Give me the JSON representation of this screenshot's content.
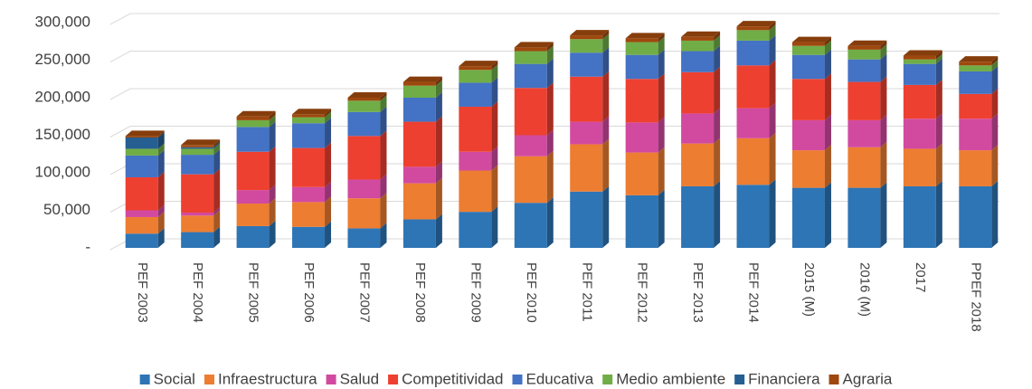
{
  "chart_data": {
    "type": "bar",
    "stacked": true,
    "grid": true,
    "legend": "bottom",
    "categories": [
      "PEF 2003",
      "PEF 2004",
      "PEF 2005",
      "PEF 2006",
      "PEF 2007",
      "PEF 2008",
      "PEF 2009",
      "PEF 2010",
      "PEF 2011",
      "PEF 2012",
      "PEF 2013",
      "PEF 2014",
      "2015 (M)",
      "2016 (M)",
      "2017",
      "PPEF 2018"
    ],
    "ylim": [
      0,
      300000
    ],
    "yticks": [
      {
        "value": 0,
        "label": "-"
      },
      {
        "value": 50000,
        "label": "50,000"
      },
      {
        "value": 100000,
        "label": "100,000"
      },
      {
        "value": 150000,
        "label": "150,000"
      },
      {
        "value": 200000,
        "label": "200,000"
      },
      {
        "value": 250000,
        "label": "250,000"
      },
      {
        "value": 300000,
        "label": "300,000"
      }
    ],
    "series": [
      {
        "name": "Social",
        "color": "#2e75b6",
        "values": [
          19000,
          21000,
          29000,
          28000,
          26000,
          38000,
          48000,
          60000,
          75000,
          70000,
          82000,
          84000,
          80000,
          80000,
          82000,
          82000
        ]
      },
      {
        "name": "Infraestructura",
        "color": "#ed7d31",
        "values": [
          22000,
          22000,
          30000,
          33000,
          40000,
          48000,
          55000,
          62000,
          63000,
          57000,
          57000,
          62000,
          50000,
          54000,
          50000,
          48000
        ]
      },
      {
        "name": "Salud",
        "color": "#d24aa0",
        "values": [
          9000,
          4000,
          18000,
          20000,
          25000,
          22000,
          25000,
          28000,
          30000,
          40000,
          40000,
          40000,
          40000,
          36000,
          40000,
          42000
        ]
      },
      {
        "name": "Competitividad",
        "color": "#ee4030",
        "values": [
          44000,
          51000,
          51000,
          52000,
          58000,
          60000,
          60000,
          63000,
          60000,
          58000,
          55000,
          57000,
          55000,
          51000,
          45000,
          33000
        ]
      },
      {
        "name": "Educativa",
        "color": "#4472c4",
        "values": [
          29000,
          26000,
          33000,
          33000,
          32000,
          32000,
          32000,
          32000,
          32000,
          32000,
          28000,
          33000,
          32000,
          30000,
          28000,
          30000
        ]
      },
      {
        "name": "Medio ambiente",
        "color": "#70ad47",
        "values": [
          9000,
          8000,
          9000,
          8000,
          15000,
          16000,
          17000,
          17000,
          18000,
          17000,
          14000,
          14000,
          12000,
          13000,
          6000,
          8000
        ]
      },
      {
        "name": "Financiera",
        "color": "#255e91",
        "values": [
          15000,
          2000,
          0,
          0,
          0,
          0,
          0,
          0,
          0,
          0,
          0,
          0,
          0,
          0,
          0,
          0
        ]
      },
      {
        "name": "Agraria",
        "color": "#9e480e",
        "values": [
          2000,
          3000,
          5000,
          4000,
          4000,
          5000,
          5000,
          5000,
          5000,
          5000,
          5000,
          5000,
          5000,
          5000,
          5000,
          5000
        ]
      }
    ]
  }
}
